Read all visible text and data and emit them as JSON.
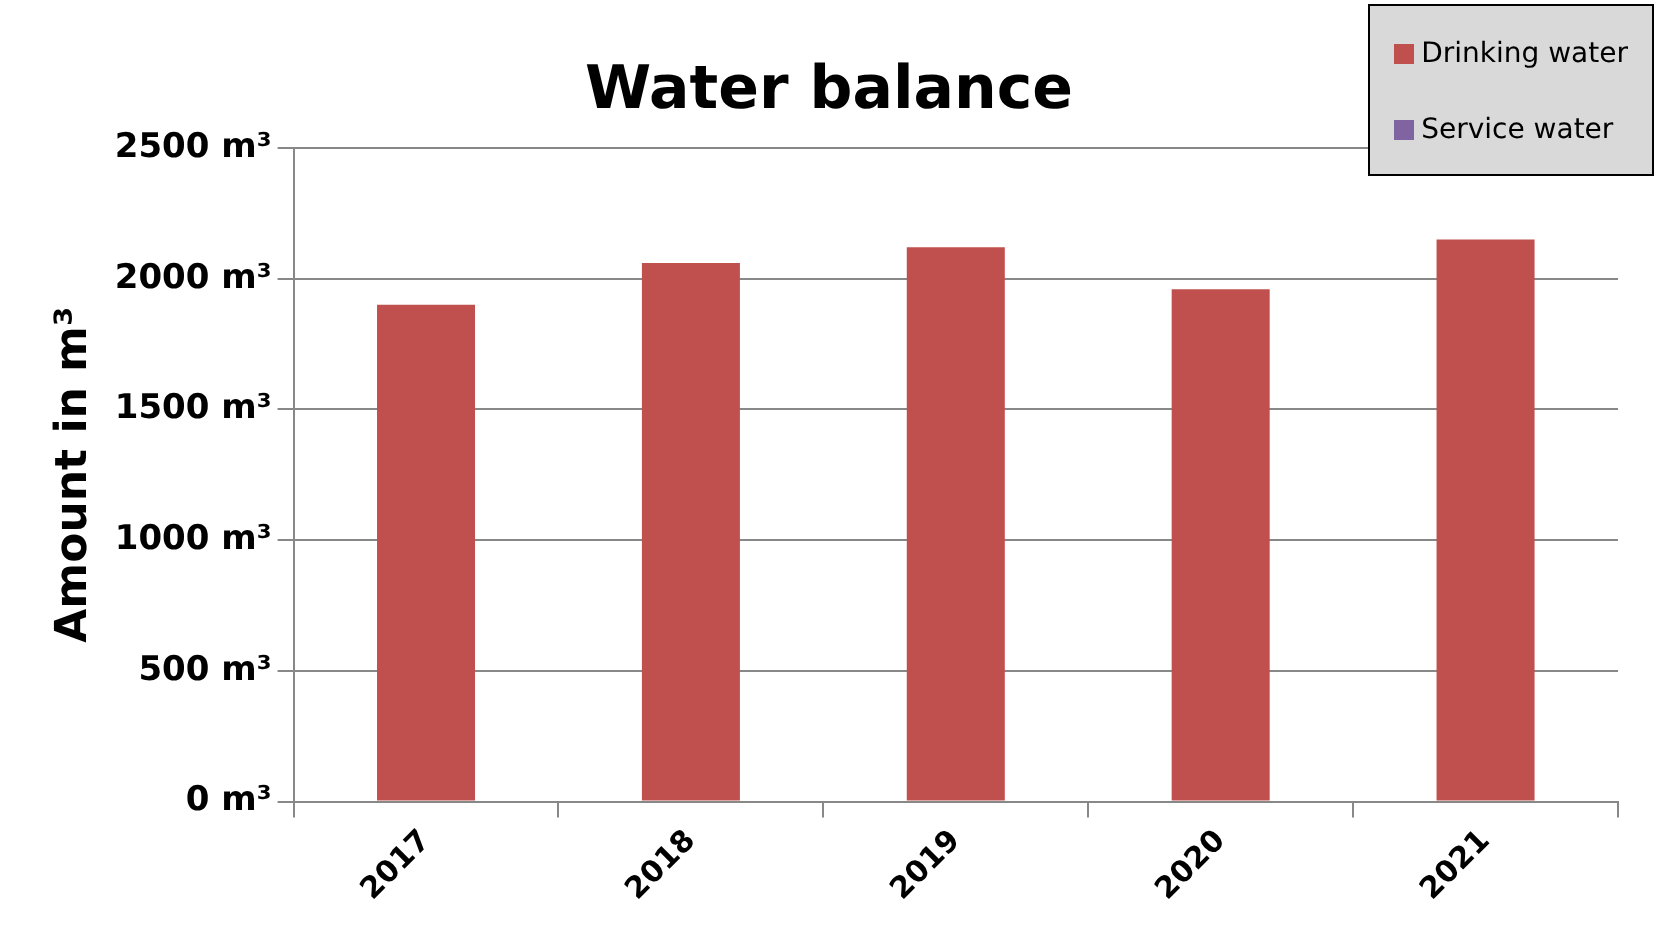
{
  "chart_data": {
    "type": "bar",
    "title": "Water balance",
    "ylabel": "Amount in m³",
    "categories": [
      "2017",
      "2018",
      "2019",
      "2020",
      "2021"
    ],
    "series": [
      {
        "name": "Drinking water",
        "color": "#c0504d",
        "values": [
          1900,
          2060,
          2120,
          1960,
          2150
        ]
      },
      {
        "name": "Service water",
        "color": "#8064a2",
        "values": [
          null,
          null,
          null,
          null,
          null
        ]
      }
    ],
    "ylim": [
      0,
      2500
    ],
    "yticks": [
      {
        "value": 0,
        "label": "0 m³"
      },
      {
        "value": 500,
        "label": "500 m³"
      },
      {
        "value": 1000,
        "label": "1000 m³"
      },
      {
        "value": 1500,
        "label": "1500 m³"
      },
      {
        "value": 2000,
        "label": "2000 m³"
      },
      {
        "value": 2500,
        "label": "2500 m³"
      }
    ],
    "grid": "y",
    "legend": "top right"
  }
}
